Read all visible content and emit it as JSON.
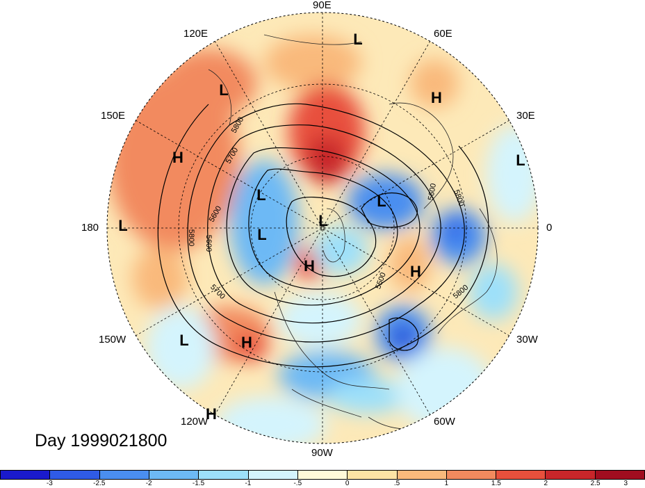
{
  "date_label": "Day 1999021800",
  "longitude_labels": {
    "e90": "90E",
    "e60": "60E",
    "e30": "30E",
    "e0": "0",
    "w30": "30W",
    "w60": "60W",
    "w90": "90W",
    "w120": "120W",
    "w150": "150W",
    "e180": "180",
    "e150": "150E",
    "e120": "120E"
  },
  "pressure_centers": [
    {
      "label": "L"
    },
    {
      "label": "H"
    },
    {
      "label": "L"
    },
    {
      "label": "H"
    },
    {
      "label": "L"
    },
    {
      "label": "H"
    },
    {
      "label": "L"
    },
    {
      "label": "L"
    },
    {
      "label": "L"
    },
    {
      "label": "L"
    },
    {
      "label": "L"
    },
    {
      "label": "H"
    },
    {
      "label": "H"
    },
    {
      "label": "L"
    },
    {
      "label": "H"
    },
    {
      "label": "L"
    }
  ],
  "contour_labels": [
    "5800",
    "5700",
    "5600",
    "5800",
    "5600",
    "5700",
    "5600",
    "5800",
    "5500",
    "5800"
  ],
  "colorbar": {
    "colors": [
      "#1a1acc",
      "#2f5be6",
      "#4a8ef0",
      "#6db9f5",
      "#9de0fa",
      "#d4f4fd",
      "#fff9d9",
      "#fde3a5",
      "#f9b97c",
      "#f28a5e",
      "#e8503c",
      "#c8262a",
      "#a00d1f"
    ],
    "ticks": [
      "-3",
      "-2.5",
      "-2",
      "-1.5",
      "-1",
      "-.5",
      "0",
      ".5",
      "1",
      "1.5",
      "2",
      "2.5",
      "3"
    ]
  }
}
